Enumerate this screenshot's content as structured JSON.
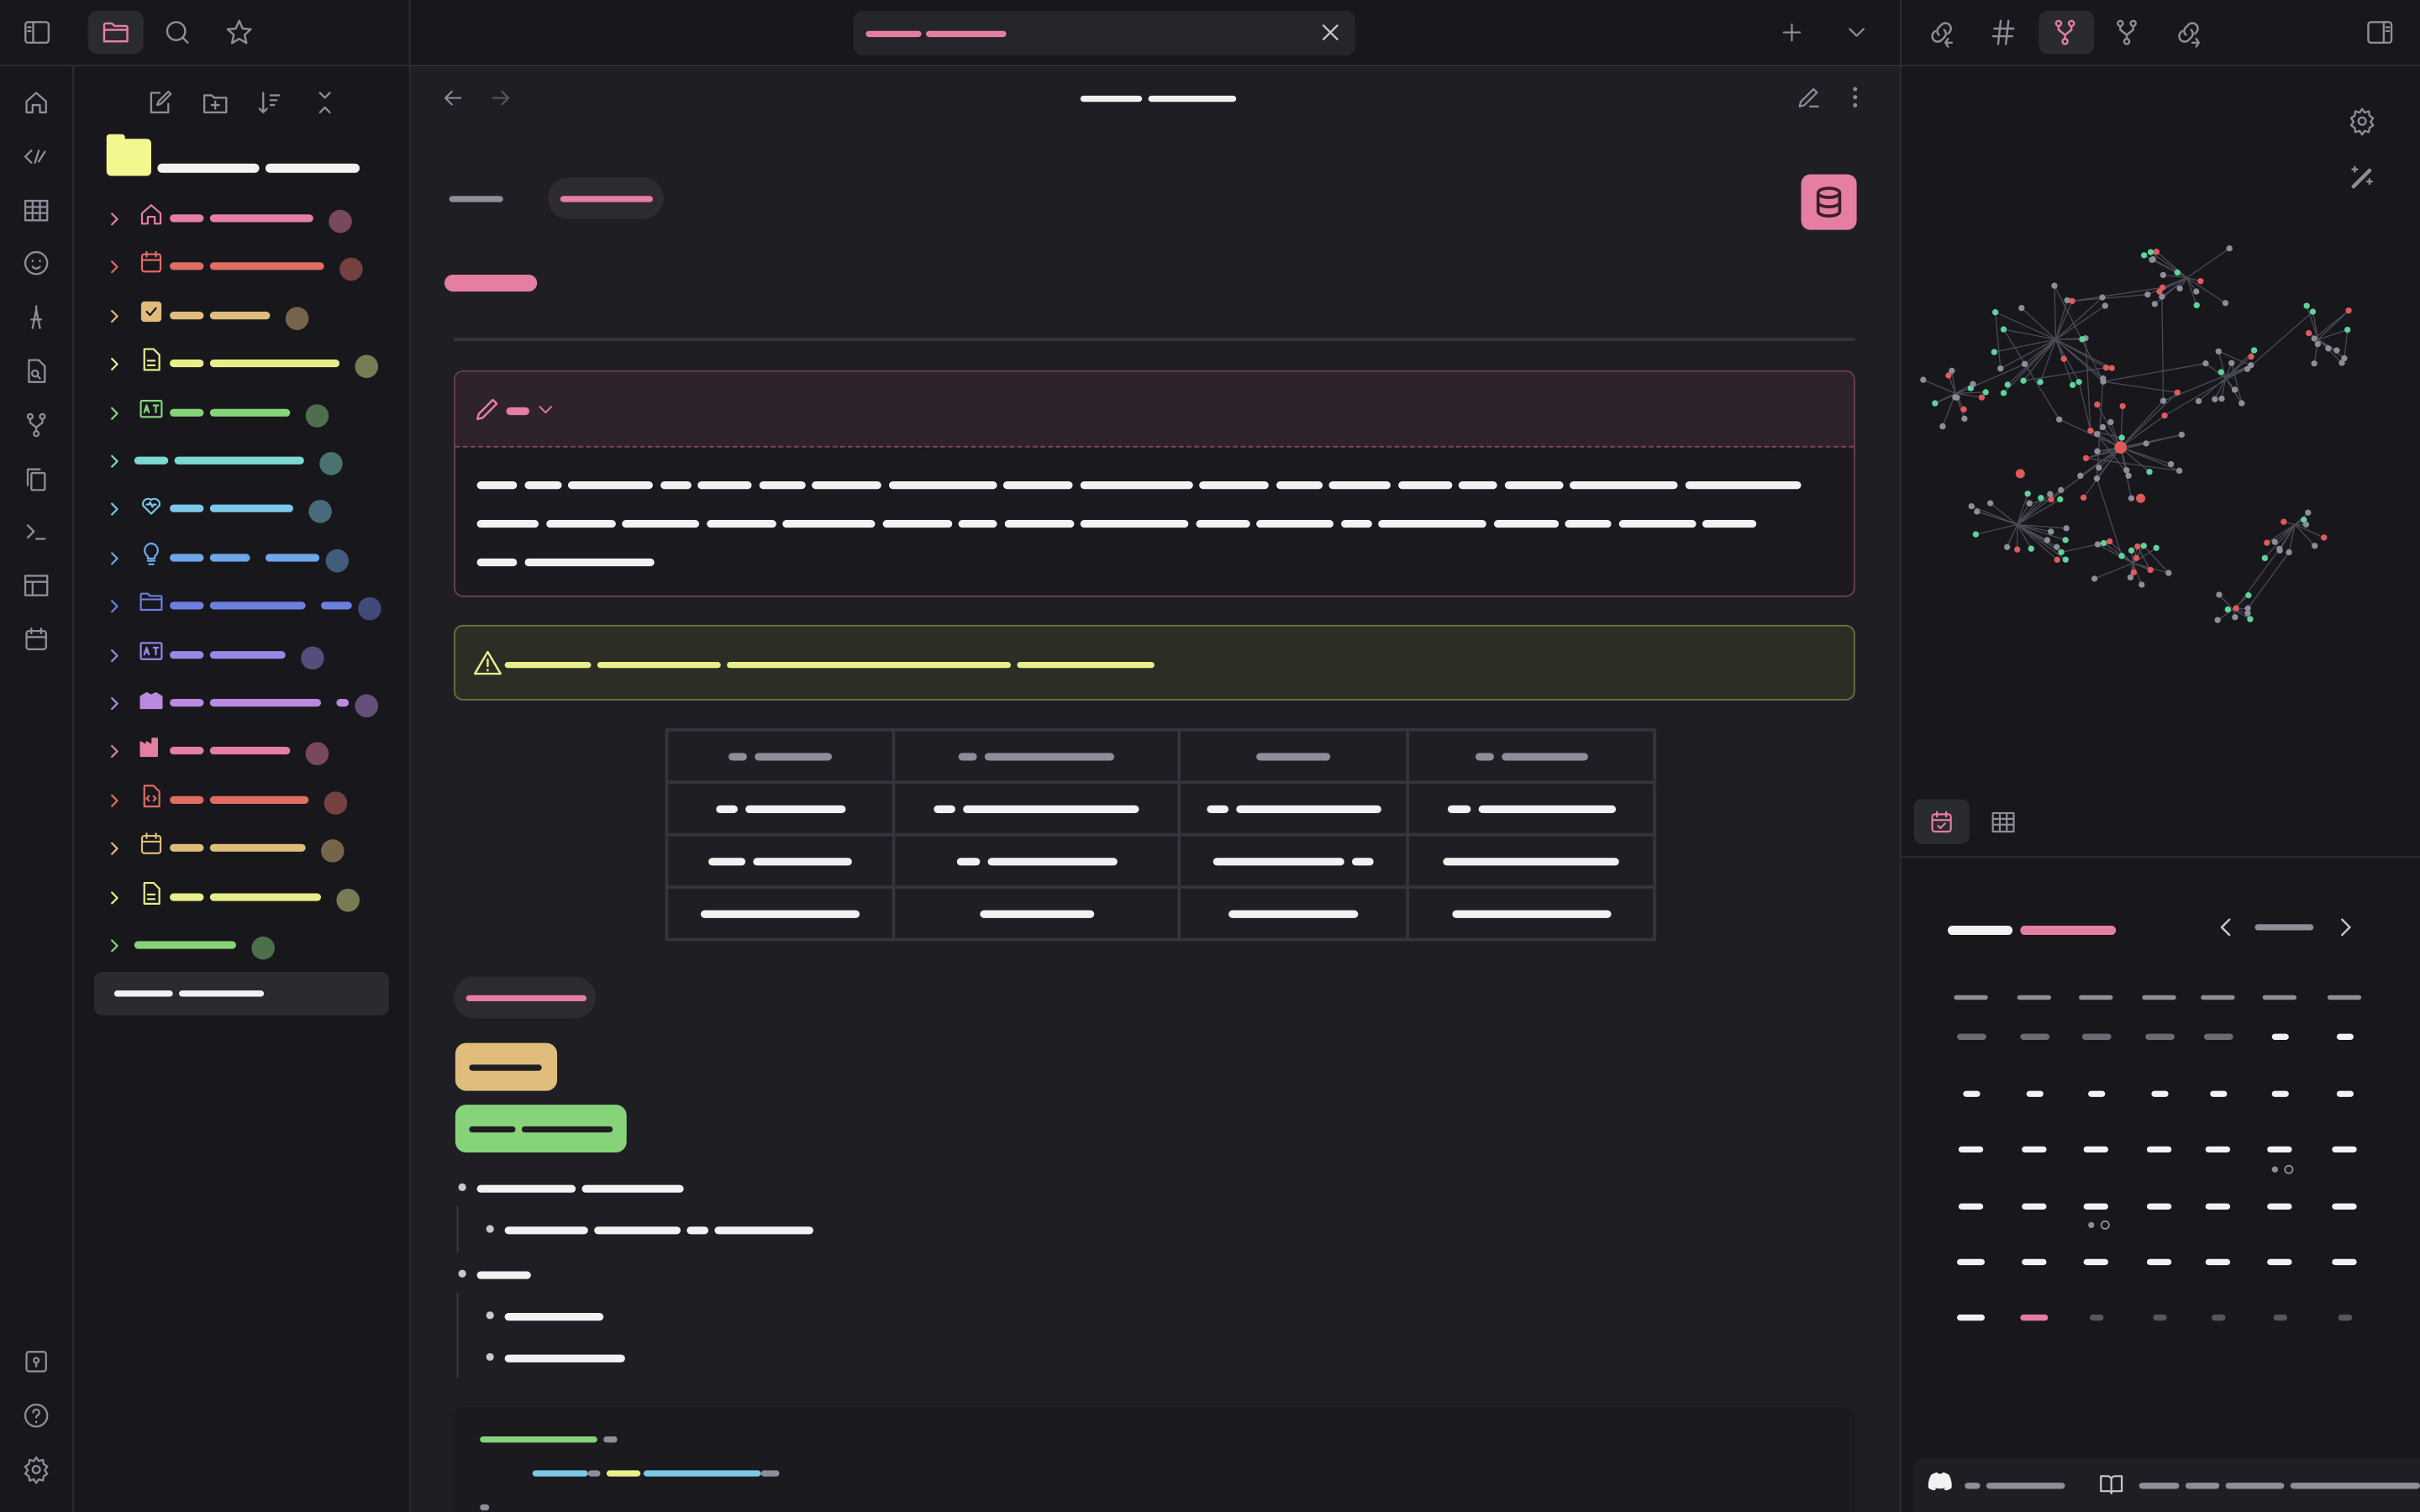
{
  "app": {
    "accent": "#e57ea0",
    "background": "#1e1e24",
    "sidebar_background": "#17171c"
  },
  "top_left_tabs": [
    {
      "icon": "folder-icon",
      "active": true
    },
    {
      "icon": "search-icon"
    },
    {
      "icon": "star-icon"
    }
  ],
  "ribbon": {
    "items": [
      "home-icon",
      "template-icon",
      "table-icon",
      "face-icon",
      "compass-icon",
      "file-search-icon",
      "graph-icon",
      "copy-icon",
      "terminal-icon",
      "layout-icon",
      "calendar-icon"
    ],
    "bottom": [
      "vault-icon",
      "help-icon",
      "settings-icon"
    ]
  },
  "explorer": {
    "toolbar": [
      "new-note-icon",
      "new-folder-icon",
      "sort-icon",
      "collapse-icon"
    ],
    "vault_folder_color": "#f4f78e",
    "folders": [
      {
        "icon": "home-icon",
        "color": "#e57ea0"
      },
      {
        "icon": "calendar-icon",
        "color": "#e06c62"
      },
      {
        "icon": "checkbox-icon",
        "color": "#e0bd7a"
      },
      {
        "icon": "document-icon",
        "color": "#e8ef8a"
      },
      {
        "icon": "translate-icon",
        "color": "#86d37a"
      },
      {
        "icon": "",
        "color": "#7dd8cf"
      },
      {
        "icon": "heart-icon",
        "color": "#7cc8e8"
      },
      {
        "icon": "lightbulb-icon",
        "color": "#6fa7e8"
      },
      {
        "icon": "folder-icon",
        "color": "#6d7fe0"
      },
      {
        "icon": "translate-icon",
        "color": "#9a86e8"
      },
      {
        "icon": "school-icon",
        "color": "#b98ae0"
      },
      {
        "icon": "factory-icon",
        "color": "#e57ea0"
      },
      {
        "icon": "file-code-icon",
        "color": "#e06c62"
      },
      {
        "icon": "calendar-icon",
        "color": "#e0bd7a"
      },
      {
        "icon": "document-icon",
        "color": "#e8ef8a"
      },
      {
        "icon": "",
        "color": "#86d37a"
      }
    ]
  },
  "tabbar": {
    "icons": [
      "close-icon",
      "plus-icon",
      "chevron-down-icon"
    ]
  },
  "right_tabs": {
    "icons": [
      "backlinks-icon",
      "tags-icon",
      "graph-icon",
      "local-graph-icon",
      "outgoing-links-icon"
    ],
    "active": 2
  },
  "colors": {
    "callout_note": "#e57ea0",
    "callout_warning": "#e8ef8a",
    "tag_tan": "#e0bd7a",
    "tag_green": "#86d37a",
    "graph_green": "#5fd49a",
    "graph_red": "#e05a5a",
    "graph_grey": "#8c8e99"
  },
  "calendar": {
    "icons": [
      "calendar-check-icon",
      "table-icon"
    ],
    "today_col": 1,
    "today_row": 5
  }
}
